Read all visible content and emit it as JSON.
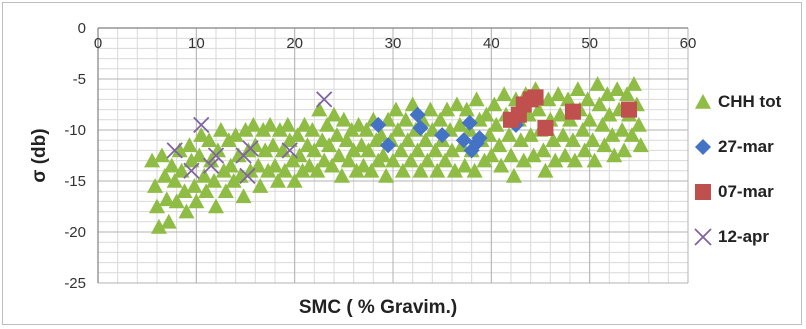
{
  "chart_data": {
    "type": "scatter",
    "title": "",
    "xlabel": "SMC  ( % Gravim.)",
    "ylabel": "σ (db)",
    "xlim": [
      0,
      60
    ],
    "ylim": [
      -25,
      0
    ],
    "x_ticks": [
      0,
      10,
      20,
      30,
      40,
      50,
      60
    ],
    "y_ticks": [
      0,
      -5,
      -10,
      -15,
      -20,
      -25
    ],
    "x_tick_labels": [
      "0",
      "10",
      "20",
      "30",
      "40",
      "50",
      "60"
    ],
    "y_tick_labels": [
      "0",
      "-5",
      "-10",
      "-15",
      "-20",
      "-25"
    ],
    "grid": true,
    "legend_position": "right",
    "series": [
      {
        "name": "CHH tot",
        "marker": "triangle",
        "color": "#8fbc45",
        "points": [
          [
            5.5,
            -13.0
          ],
          [
            5.8,
            -15.5
          ],
          [
            6.0,
            -17.5
          ],
          [
            6.2,
            -19.5
          ],
          [
            6.5,
            -12.5
          ],
          [
            6.8,
            -14.5
          ],
          [
            7.0,
            -16.8
          ],
          [
            7.2,
            -19.0
          ],
          [
            7.5,
            -13.5
          ],
          [
            7.8,
            -15.0
          ],
          [
            8.0,
            -17.0
          ],
          [
            8.3,
            -12.0
          ],
          [
            8.5,
            -14.0
          ],
          [
            8.8,
            -16.0
          ],
          [
            9.0,
            -18.0
          ],
          [
            9.3,
            -11.5
          ],
          [
            9.5,
            -13.0
          ],
          [
            9.8,
            -15.5
          ],
          [
            10.0,
            -17.0
          ],
          [
            10.3,
            -12.5
          ],
          [
            10.5,
            -10.5
          ],
          [
            10.8,
            -14.5
          ],
          [
            11.0,
            -16.0
          ],
          [
            11.3,
            -11.0
          ],
          [
            11.5,
            -13.0
          ],
          [
            11.8,
            -15.0
          ],
          [
            12.0,
            -17.5
          ],
          [
            12.2,
            -12.0
          ],
          [
            12.5,
            -10.0
          ],
          [
            12.8,
            -14.0
          ],
          [
            13.0,
            -16.0
          ],
          [
            13.3,
            -11.0
          ],
          [
            13.5,
            -13.5
          ],
          [
            13.8,
            -15.0
          ],
          [
            14.0,
            -10.5
          ],
          [
            14.3,
            -12.5
          ],
          [
            14.5,
            -14.5
          ],
          [
            14.8,
            -16.5
          ],
          [
            15.0,
            -10.0
          ],
          [
            15.3,
            -12.0
          ],
          [
            15.5,
            -14.0
          ],
          [
            15.8,
            -9.5
          ],
          [
            16.0,
            -11.5
          ],
          [
            16.3,
            -13.5
          ],
          [
            16.5,
            -15.5
          ],
          [
            16.8,
            -10.0
          ],
          [
            17.0,
            -12.0
          ],
          [
            17.3,
            -14.0
          ],
          [
            17.5,
            -9.5
          ],
          [
            17.8,
            -11.5
          ],
          [
            18.0,
            -13.5
          ],
          [
            18.3,
            -15.0
          ],
          [
            18.5,
            -10.0
          ],
          [
            18.8,
            -12.0
          ],
          [
            19.0,
            -14.0
          ],
          [
            19.3,
            -9.5
          ],
          [
            19.5,
            -11.0
          ],
          [
            19.8,
            -13.0
          ],
          [
            20.0,
            -15.0
          ],
          [
            20.3,
            -10.5
          ],
          [
            20.5,
            -12.5
          ],
          [
            20.8,
            -14.0
          ],
          [
            21.0,
            -9.5
          ],
          [
            21.3,
            -11.5
          ],
          [
            21.5,
            -13.5
          ],
          [
            21.8,
            -10.0
          ],
          [
            22.0,
            -12.0
          ],
          [
            22.3,
            -14.0
          ],
          [
            22.5,
            -8.0
          ],
          [
            22.8,
            -11.0
          ],
          [
            23.0,
            -13.0
          ],
          [
            23.3,
            -9.5
          ],
          [
            23.5,
            -11.5
          ],
          [
            23.8,
            -13.5
          ],
          [
            24.0,
            -8.5
          ],
          [
            24.3,
            -10.5
          ],
          [
            24.5,
            -12.5
          ],
          [
            24.8,
            -14.5
          ],
          [
            25.0,
            -9.0
          ],
          [
            25.3,
            -11.0
          ],
          [
            25.5,
            -13.0
          ],
          [
            25.8,
            -10.0
          ],
          [
            26.0,
            -12.0
          ],
          [
            26.3,
            -14.0
          ],
          [
            26.5,
            -9.5
          ],
          [
            26.8,
            -11.5
          ],
          [
            27.0,
            -13.5
          ],
          [
            27.3,
            -10.0
          ],
          [
            27.5,
            -12.0
          ],
          [
            27.8,
            -14.0
          ],
          [
            28.0,
            -9.0
          ],
          [
            28.3,
            -11.0
          ],
          [
            28.5,
            -13.0
          ],
          [
            28.8,
            -10.5
          ],
          [
            29.0,
            -12.5
          ],
          [
            29.3,
            -14.5
          ],
          [
            29.5,
            -9.0
          ],
          [
            29.8,
            -11.0
          ],
          [
            30.0,
            -13.0
          ],
          [
            30.3,
            -8.0
          ],
          [
            30.5,
            -10.0
          ],
          [
            30.8,
            -12.0
          ],
          [
            31.0,
            -14.0
          ],
          [
            31.3,
            -9.0
          ],
          [
            31.5,
            -11.0
          ],
          [
            31.8,
            -13.0
          ],
          [
            32.0,
            -7.5
          ],
          [
            32.3,
            -10.0
          ],
          [
            32.5,
            -12.0
          ],
          [
            32.8,
            -14.0
          ],
          [
            33.0,
            -9.0
          ],
          [
            33.3,
            -11.0
          ],
          [
            33.5,
            -13.0
          ],
          [
            33.8,
            -8.0
          ],
          [
            34.0,
            -10.0
          ],
          [
            34.3,
            -12.0
          ],
          [
            34.5,
            -14.0
          ],
          [
            34.8,
            -9.0
          ],
          [
            35.0,
            -11.0
          ],
          [
            35.3,
            -13.0
          ],
          [
            35.5,
            -8.0
          ],
          [
            35.8,
            -10.0
          ],
          [
            36.0,
            -12.0
          ],
          [
            36.3,
            -14.0
          ],
          [
            36.5,
            -7.5
          ],
          [
            36.8,
            -9.5
          ],
          [
            37.0,
            -11.5
          ],
          [
            37.3,
            -13.5
          ],
          [
            37.5,
            -8.0
          ],
          [
            37.8,
            -10.0
          ],
          [
            38.0,
            -12.0
          ],
          [
            38.3,
            -14.0
          ],
          [
            38.5,
            -7.0
          ],
          [
            38.8,
            -9.0
          ],
          [
            39.0,
            -11.0
          ],
          [
            39.3,
            -13.0
          ],
          [
            39.5,
            -8.5
          ],
          [
            39.8,
            -10.5
          ],
          [
            40.0,
            -12.5
          ],
          [
            40.3,
            -7.5
          ],
          [
            40.5,
            -9.5
          ],
          [
            40.8,
            -11.5
          ],
          [
            41.0,
            -13.5
          ],
          [
            41.3,
            -6.5
          ],
          [
            41.5,
            -8.5
          ],
          [
            41.8,
            -10.5
          ],
          [
            42.0,
            -12.5
          ],
          [
            42.3,
            -14.5
          ],
          [
            42.5,
            -7.0
          ],
          [
            42.8,
            -9.0
          ],
          [
            43.0,
            -11.0
          ],
          [
            43.3,
            -13.0
          ],
          [
            43.5,
            -6.5
          ],
          [
            43.8,
            -8.5
          ],
          [
            44.0,
            -10.5
          ],
          [
            44.3,
            -12.5
          ],
          [
            44.5,
            -6.0
          ],
          [
            44.8,
            -8.0
          ],
          [
            45.0,
            -10.0
          ],
          [
            45.3,
            -12.0
          ],
          [
            45.5,
            -14.0
          ],
          [
            45.8,
            -7.0
          ],
          [
            46.0,
            -9.0
          ],
          [
            46.3,
            -11.0
          ],
          [
            46.5,
            -13.0
          ],
          [
            46.8,
            -6.5
          ],
          [
            47.0,
            -8.5
          ],
          [
            47.3,
            -10.5
          ],
          [
            47.5,
            -12.5
          ],
          [
            47.8,
            -7.0
          ],
          [
            48.0,
            -9.0
          ],
          [
            48.3,
            -11.0
          ],
          [
            48.5,
            -13.0
          ],
          [
            48.8,
            -6.0
          ],
          [
            49.0,
            -8.0
          ],
          [
            49.3,
            -10.0
          ],
          [
            49.5,
            -12.0
          ],
          [
            49.8,
            -7.0
          ],
          [
            50.0,
            -9.0
          ],
          [
            50.3,
            -11.0
          ],
          [
            50.5,
            -13.0
          ],
          [
            50.8,
            -5.5
          ],
          [
            51.0,
            -7.5
          ],
          [
            51.3,
            -9.5
          ],
          [
            51.5,
            -11.5
          ],
          [
            51.8,
            -6.5
          ],
          [
            52.0,
            -8.5
          ],
          [
            52.3,
            -10.5
          ],
          [
            52.5,
            -12.5
          ],
          [
            52.8,
            -6.0
          ],
          [
            53.0,
            -8.0
          ],
          [
            53.3,
            -10.0
          ],
          [
            53.5,
            -12.0
          ],
          [
            53.8,
            -6.5
          ],
          [
            54.0,
            -8.5
          ],
          [
            54.3,
            -10.5
          ],
          [
            54.5,
            -5.5
          ],
          [
            54.8,
            -7.5
          ],
          [
            55.0,
            -9.5
          ],
          [
            55.2,
            -11.5
          ]
        ]
      },
      {
        "name": "27-mar",
        "marker": "diamond",
        "color": "#4472c4",
        "points": [
          [
            28.5,
            -9.5
          ],
          [
            29.5,
            -11.5
          ],
          [
            32.5,
            -8.5
          ],
          [
            32.8,
            -9.8
          ],
          [
            35.0,
            -10.5
          ],
          [
            37.2,
            -11.0
          ],
          [
            37.8,
            -9.3
          ],
          [
            38.0,
            -12.0
          ],
          [
            38.5,
            -11.3
          ],
          [
            38.8,
            -10.8
          ],
          [
            42.5,
            -9.5
          ]
        ]
      },
      {
        "name": "07-mar",
        "marker": "square",
        "color": "#c0504d",
        "points": [
          [
            42.0,
            -9.0
          ],
          [
            42.8,
            -8.5
          ],
          [
            43.3,
            -7.5
          ],
          [
            44.0,
            -7.0
          ],
          [
            44.5,
            -6.8
          ],
          [
            45.5,
            -9.8
          ],
          [
            48.3,
            -8.2
          ],
          [
            54.0,
            -8.0
          ]
        ]
      },
      {
        "name": "12-apr",
        "marker": "x",
        "color": "#8064a2",
        "points": [
          [
            7.8,
            -12.0
          ],
          [
            9.5,
            -14.0
          ],
          [
            10.5,
            -9.5
          ],
          [
            11.5,
            -13.5
          ],
          [
            12.0,
            -12.5
          ],
          [
            14.8,
            -12.5
          ],
          [
            15.2,
            -14.5
          ],
          [
            15.5,
            -11.8
          ],
          [
            19.5,
            -12.0
          ],
          [
            23.0,
            -7.0
          ]
        ]
      }
    ]
  }
}
